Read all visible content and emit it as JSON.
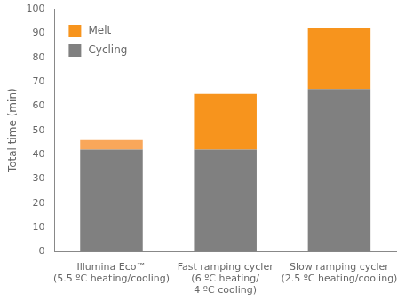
{
  "chart_data": {
    "type": "bar",
    "stacked": true,
    "y_label": "Total time (min)",
    "categories": [
      "Illumina Eco™\n(5.5 ºC heating/cooling)",
      "Fast ramping cycler\n(6 ºC heating/\n4 ºC cooling)",
      "Slow ramping cycler\n(2.5 ºC heating/cooling)"
    ],
    "series": [
      {
        "name": "Cycling",
        "color": "#808080",
        "values": [
          42,
          42,
          67
        ]
      },
      {
        "name": "Melt",
        "color": "#f7941d",
        "colors": [
          "#f9a75a",
          "#f7941d",
          "#f7941d"
        ],
        "values": [
          4,
          23,
          25
        ]
      }
    ],
    "ylim": [
      0,
      100
    ],
    "yticks": [
      0,
      10,
      20,
      30,
      40,
      50,
      60,
      70,
      80,
      90,
      100
    ],
    "grid": false,
    "legend": "top-left"
  }
}
